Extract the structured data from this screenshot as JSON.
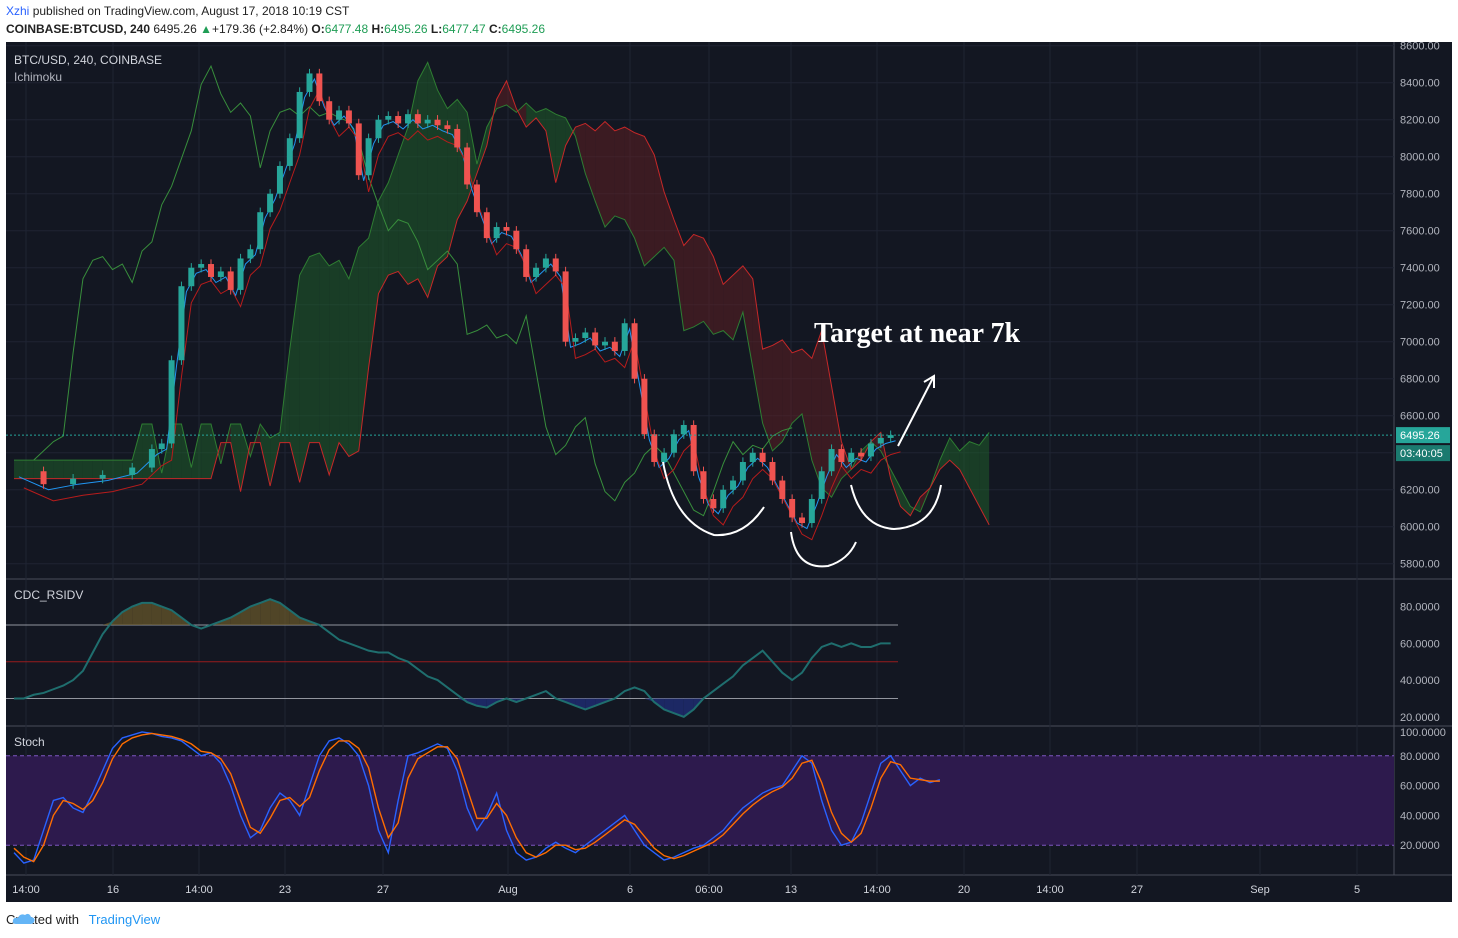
{
  "header": {
    "author": "Xzhi",
    "published_text": "published on TradingView.com, August 17, 2018 10:19 CST",
    "symbol": "COINBASE:BTCUSD, 240",
    "last": "6495.26",
    "change": "+179.36 (+2.84%)",
    "o_label": "O:",
    "o_val": "6477.48",
    "h_label": "H:",
    "h_val": "6495.26",
    "l_label": "L:",
    "l_val": "6477.47",
    "c_label": "C:",
    "c_val": "6495.26"
  },
  "footer": {
    "created_with": "Created with",
    "brand": "TradingView"
  },
  "colors": {
    "background": "#131722",
    "up": "#26a69a",
    "down": "#ef5350",
    "cloud_green": "#1f5c2a",
    "cloud_red": "#5c1f22",
    "stoch_fill": "#2d1a4d",
    "rsi_line": "#1f6e6e"
  },
  "chart_data": [
    {
      "type": "candlestick",
      "title": "BTC/USD, 240, COINBASE",
      "indicator": "Ichimoku",
      "annotation": "Target at near 7k",
      "last_price_label": "6495.26",
      "countdown_label": "03:40:05",
      "ylim": [
        5750,
        8620
      ],
      "y_ticks": [
        "8600.00",
        "8400.00",
        "8200.00",
        "8000.00",
        "7800.00",
        "7600.00",
        "7400.00",
        "7200.00",
        "7000.00",
        "6800.00",
        "6600.00",
        "6400.00",
        "6200.00",
        "6000.00",
        "5800.00"
      ],
      "x_ticks": [
        "14:00",
        "16",
        "14:00",
        "23",
        "27",
        "Aug",
        "6",
        "06:00",
        "13",
        "14:00",
        "20",
        "14:00",
        "27",
        "Sep",
        "5"
      ],
      "price_path": [
        [
          0,
          6300
        ],
        [
          3,
          6230
        ],
        [
          6,
          6260
        ],
        [
          9,
          6280
        ],
        [
          12,
          6320
        ],
        [
          14,
          6420
        ],
        [
          15,
          6450
        ],
        [
          16,
          6900
        ],
        [
          17,
          7300
        ],
        [
          18,
          7400
        ],
        [
          19,
          7420
        ],
        [
          20,
          7350
        ],
        [
          21,
          7380
        ],
        [
          22,
          7280
        ],
        [
          23,
          7450
        ],
        [
          24,
          7500
        ],
        [
          25,
          7700
        ],
        [
          26,
          7800
        ],
        [
          27,
          7950
        ],
        [
          28,
          8100
        ],
        [
          29,
          8350
        ],
        [
          30,
          8450
        ],
        [
          31,
          8300
        ],
        [
          32,
          8200
        ],
        [
          33,
          8250
        ],
        [
          34,
          8180
        ],
        [
          35,
          7900
        ],
        [
          36,
          8100
        ],
        [
          37,
          8200
        ],
        [
          38,
          8220
        ],
        [
          39,
          8180
        ],
        [
          40,
          8230
        ],
        [
          41,
          8180
        ],
        [
          42,
          8200
        ],
        [
          43,
          8170
        ],
        [
          44,
          8150
        ],
        [
          45,
          8050
        ],
        [
          46,
          7850
        ],
        [
          47,
          7700
        ],
        [
          48,
          7560
        ],
        [
          49,
          7620
        ],
        [
          50,
          7600
        ],
        [
          51,
          7500
        ],
        [
          52,
          7350
        ],
        [
          53,
          7400
        ],
        [
          54,
          7450
        ],
        [
          55,
          7380
        ],
        [
          56,
          7000
        ],
        [
          57,
          7020
        ],
        [
          58,
          7050
        ],
        [
          59,
          6980
        ],
        [
          60,
          7000
        ],
        [
          61,
          6950
        ],
        [
          62,
          7100
        ],
        [
          63,
          6800
        ],
        [
          64,
          6500
        ],
        [
          65,
          6350
        ],
        [
          66,
          6400
        ],
        [
          67,
          6500
        ],
        [
          68,
          6550
        ],
        [
          69,
          6300
        ],
        [
          70,
          6150
        ],
        [
          71,
          6100
        ],
        [
          72,
          6200
        ],
        [
          73,
          6250
        ],
        [
          74,
          6350
        ],
        [
          75,
          6400
        ],
        [
          76,
          6350
        ],
        [
          77,
          6250
        ],
        [
          78,
          6150
        ],
        [
          79,
          6050
        ],
        [
          80,
          6020
        ],
        [
          81,
          6150
        ],
        [
          82,
          6300
        ],
        [
          83,
          6420
        ],
        [
          84,
          6350
        ],
        [
          85,
          6400
        ],
        [
          86,
          6380
        ],
        [
          87,
          6450
        ],
        [
          88,
          6480
        ],
        [
          89,
          6495
        ]
      ]
    },
    {
      "type": "line",
      "title": "CDC_RSIDV",
      "ylim": [
        15,
        95
      ],
      "y_ticks": [
        "80.0000",
        "60.0000",
        "40.0000",
        "20.0000"
      ],
      "levels": [
        70,
        50,
        30
      ],
      "values": [
        30,
        30,
        32,
        33,
        35,
        37,
        40,
        45,
        55,
        65,
        72,
        77,
        80,
        82,
        82,
        80,
        78,
        74,
        70,
        68,
        70,
        72,
        74,
        77,
        80,
        82,
        84,
        82,
        78,
        74,
        72,
        70,
        66,
        62,
        60,
        58,
        56,
        55,
        55,
        52,
        50,
        46,
        42,
        40,
        36,
        32,
        28,
        26,
        25,
        28,
        30,
        28,
        30,
        32,
        34,
        30,
        28,
        26,
        24,
        26,
        28,
        30,
        34,
        36,
        34,
        28,
        24,
        22,
        20,
        24,
        30,
        34,
        38,
        42,
        48,
        52,
        56,
        50,
        44,
        40,
        44,
        52,
        58,
        60,
        58,
        60,
        58,
        58,
        60,
        60
      ]
    },
    {
      "type": "line",
      "title": "Stoch",
      "ylim": [
        0,
        100
      ],
      "y_ticks": [
        "100.0000",
        "80.0000",
        "60.0000",
        "40.0000",
        "20.0000"
      ],
      "band": [
        20,
        80
      ],
      "k_values": [
        15,
        8,
        10,
        30,
        50,
        52,
        45,
        42,
        55,
        70,
        85,
        92,
        94,
        96,
        95,
        93,
        92,
        90,
        85,
        80,
        82,
        75,
        60,
        40,
        25,
        30,
        45,
        55,
        50,
        40,
        60,
        80,
        90,
        92,
        88,
        80,
        60,
        30,
        15,
        50,
        80,
        82,
        85,
        88,
        85,
        70,
        45,
        30,
        40,
        55,
        30,
        15,
        10,
        12,
        18,
        22,
        18,
        15,
        20,
        25,
        30,
        35,
        40,
        30,
        20,
        15,
        10,
        12,
        15,
        18,
        20,
        25,
        30,
        38,
        45,
        50,
        55,
        58,
        60,
        70,
        80,
        75,
        50,
        30,
        20,
        22,
        35,
        55,
        75,
        80,
        70,
        60,
        65,
        62,
        64
      ],
      "d_values": [
        18,
        12,
        9,
        20,
        40,
        50,
        48,
        44,
        50,
        62,
        78,
        88,
        92,
        94,
        95,
        94,
        93,
        91,
        88,
        83,
        82,
        78,
        68,
        50,
        32,
        28,
        38,
        50,
        52,
        46,
        52,
        70,
        84,
        90,
        90,
        85,
        72,
        45,
        25,
        35,
        65,
        78,
        82,
        86,
        86,
        78,
        58,
        38,
        38,
        48,
        40,
        25,
        15,
        12,
        15,
        20,
        20,
        17,
        18,
        22,
        27,
        32,
        37,
        34,
        26,
        18,
        13,
        11,
        13,
        16,
        19,
        22,
        27,
        34,
        41,
        47,
        52,
        56,
        59,
        65,
        75,
        77,
        62,
        42,
        28,
        22,
        28,
        45,
        65,
        76,
        74,
        65,
        64,
        63,
        63
      ]
    }
  ]
}
